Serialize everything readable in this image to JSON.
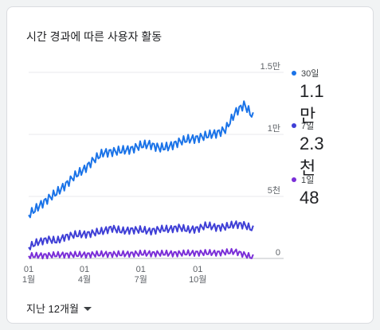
{
  "card": {
    "title": "시간 경과에 따른 사용자 활동"
  },
  "period": {
    "label": "지난 12개월"
  },
  "colors": {
    "s30": "#1a73e8",
    "s7": "#3f3fd6",
    "s1": "#7a2ed8",
    "grid": "#e8eaed",
    "axis": "#bdc1c6"
  },
  "legend": [
    {
      "label": "30일",
      "value": "1.1만",
      "color": "#1a73e8"
    },
    {
      "label": "7일",
      "value": "2.3천",
      "color": "#3f3fd6"
    },
    {
      "label": "1일",
      "value": "48",
      "color": "#7a2ed8"
    }
  ],
  "chart_data": {
    "type": "line",
    "y_ticks": [
      {
        "value": 15000,
        "label": "1.5만"
      },
      {
        "value": 10000,
        "label": "1만"
      },
      {
        "value": 5000,
        "label": "5천"
      },
      {
        "value": 0,
        "label": "0"
      }
    ],
    "ylim": [
      0,
      15000
    ],
    "x_range": [
      "2022-01-01",
      "2022-12-31"
    ],
    "x_ticks": [
      {
        "date": "2022-01-01",
        "day": "01",
        "month": "1월"
      },
      {
        "date": "2022-04-01",
        "day": "01",
        "month": "4월"
      },
      {
        "date": "2022-07-01",
        "day": "01",
        "month": "7월"
      },
      {
        "date": "2022-10-01",
        "day": "01",
        "month": "10월"
      }
    ],
    "series": [
      {
        "name": "30일",
        "color": "#1a73e8",
        "x": [
          "2022-01-01",
          "2022-01-15",
          "2022-02-01",
          "2022-02-15",
          "2022-03-01",
          "2022-03-15",
          "2022-04-01",
          "2022-04-15",
          "2022-05-01",
          "2022-05-15",
          "2022-06-01",
          "2022-06-15",
          "2022-07-01",
          "2022-07-15",
          "2022-08-01",
          "2022-08-15",
          "2022-09-01",
          "2022-09-15",
          "2022-10-01",
          "2022-10-15",
          "2022-11-01",
          "2022-11-15",
          "2022-12-01",
          "2022-12-15",
          "2022-12-31"
        ],
        "values": [
          3500,
          4100,
          4800,
          5300,
          5900,
          6600,
          7200,
          7900,
          8500,
          8600,
          8700,
          8800,
          9100,
          9200,
          8900,
          9000,
          9400,
          9600,
          9700,
          9900,
          10100,
          10400,
          11800,
          12400,
          11300
        ]
      },
      {
        "name": "7일",
        "color": "#3f3fd6",
        "x": [
          "2022-01-01",
          "2022-01-15",
          "2022-02-01",
          "2022-02-15",
          "2022-03-01",
          "2022-03-15",
          "2022-04-01",
          "2022-04-15",
          "2022-05-01",
          "2022-05-15",
          "2022-06-01",
          "2022-06-15",
          "2022-07-01",
          "2022-07-15",
          "2022-08-01",
          "2022-08-15",
          "2022-09-01",
          "2022-09-15",
          "2022-10-01",
          "2022-10-15",
          "2022-11-01",
          "2022-11-15",
          "2022-12-01",
          "2022-12-15",
          "2022-12-31"
        ],
        "values": [
          900,
          1300,
          1550,
          1400,
          1750,
          1900,
          1950,
          2050,
          2200,
          2450,
          2200,
          2300,
          2300,
          2200,
          2350,
          2350,
          2500,
          2300,
          2400,
          2650,
          2500,
          2550,
          2750,
          2700,
          2300
        ]
      },
      {
        "name": "1일",
        "color": "#7a2ed8",
        "x": [
          "2022-01-01",
          "2022-02-01",
          "2022-03-01",
          "2022-04-01",
          "2022-05-01",
          "2022-06-01",
          "2022-07-01",
          "2022-08-01",
          "2022-09-01",
          "2022-10-01",
          "2022-11-01",
          "2022-12-01",
          "2022-12-31"
        ],
        "values": [
          200,
          250,
          300,
          300,
          350,
          350,
          400,
          400,
          400,
          450,
          450,
          550,
          48
        ]
      }
    ]
  }
}
